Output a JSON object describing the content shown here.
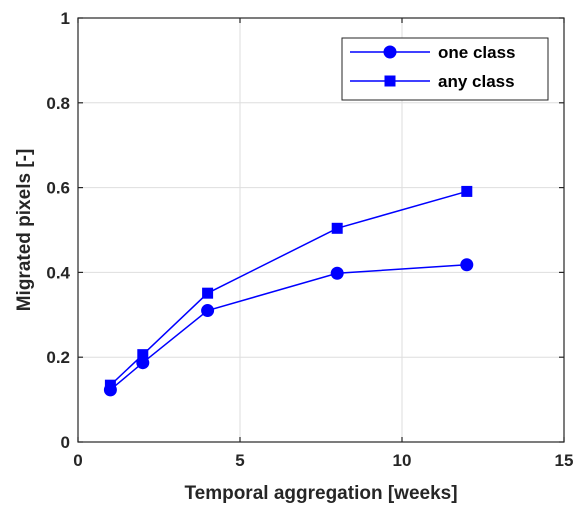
{
  "chart_data": {
    "type": "line",
    "title": "",
    "xlabel": "Temporal aggregation [weeks]",
    "ylabel": "Migrated pixels [-]",
    "xlim": [
      0,
      15
    ],
    "ylim": [
      0,
      1
    ],
    "xticks": [
      0,
      5,
      10,
      15
    ],
    "xtick_labels": [
      "0",
      "5",
      "10",
      "15"
    ],
    "yticks": [
      0,
      0.2,
      0.4,
      0.6,
      0.8,
      1
    ],
    "ytick_labels": [
      "0",
      "0.2",
      "0.4",
      "0.6",
      "0.8",
      "1"
    ],
    "grid": true,
    "legend_position": "top-right",
    "series": [
      {
        "name": "one class",
        "marker": "circle",
        "color": "#0000ff",
        "x": [
          1,
          2,
          4,
          8,
          12
        ],
        "y": [
          0.123,
          0.187,
          0.31,
          0.398,
          0.418
        ]
      },
      {
        "name": "any class",
        "marker": "square",
        "color": "#0000ff",
        "x": [
          1,
          2,
          4,
          8,
          12
        ],
        "y": [
          0.134,
          0.206,
          0.351,
          0.504,
          0.591
        ]
      }
    ]
  }
}
